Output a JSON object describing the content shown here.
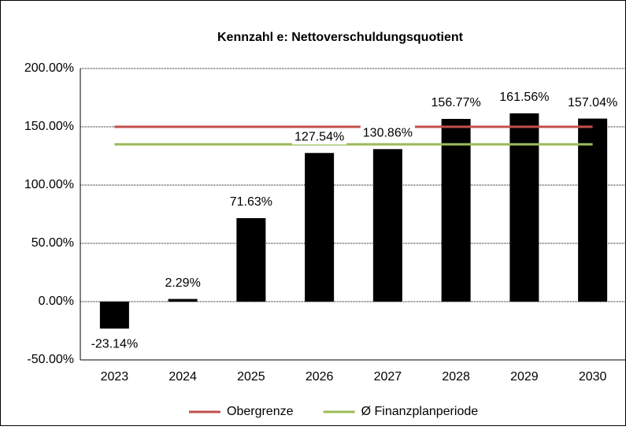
{
  "chart_data": {
    "type": "bar",
    "title": "Kennzahl e: Nettoverschuldungsquotient",
    "categories": [
      "2023",
      "2024",
      "2025",
      "2026",
      "2027",
      "2028",
      "2029",
      "2030"
    ],
    "values": [
      -23.14,
      2.29,
      71.63,
      127.54,
      130.86,
      156.77,
      161.56,
      157.04
    ],
    "value_labels": [
      "-23.14%",
      "2.29%",
      "71.63%",
      "127.54%",
      "130.86%",
      "156.77%",
      "161.56%",
      "157.04%"
    ],
    "color": "#000000",
    "series": [
      {
        "name": "Obergrenze",
        "type": "line",
        "color": "#c0504d",
        "values": [
          150,
          150,
          150,
          150,
          150,
          150,
          150,
          150
        ]
      },
      {
        "name": "Ø Finanzplanperiode",
        "type": "line",
        "color": "#9bbb59",
        "values": [
          135,
          135,
          135,
          135,
          135,
          135,
          135,
          135
        ]
      }
    ],
    "ylim": [
      -50,
      200
    ],
    "yticks": [
      {
        "value": -50,
        "label": "-50.00%"
      },
      {
        "value": 0,
        "label": "0.00%"
      },
      {
        "value": 50,
        "label": "50.00%"
      },
      {
        "value": 100,
        "label": "100.00%"
      },
      {
        "value": 150,
        "label": "150.00%"
      },
      {
        "value": 200,
        "label": "200.00%"
      }
    ],
    "grid": true,
    "legend": "bottom"
  }
}
